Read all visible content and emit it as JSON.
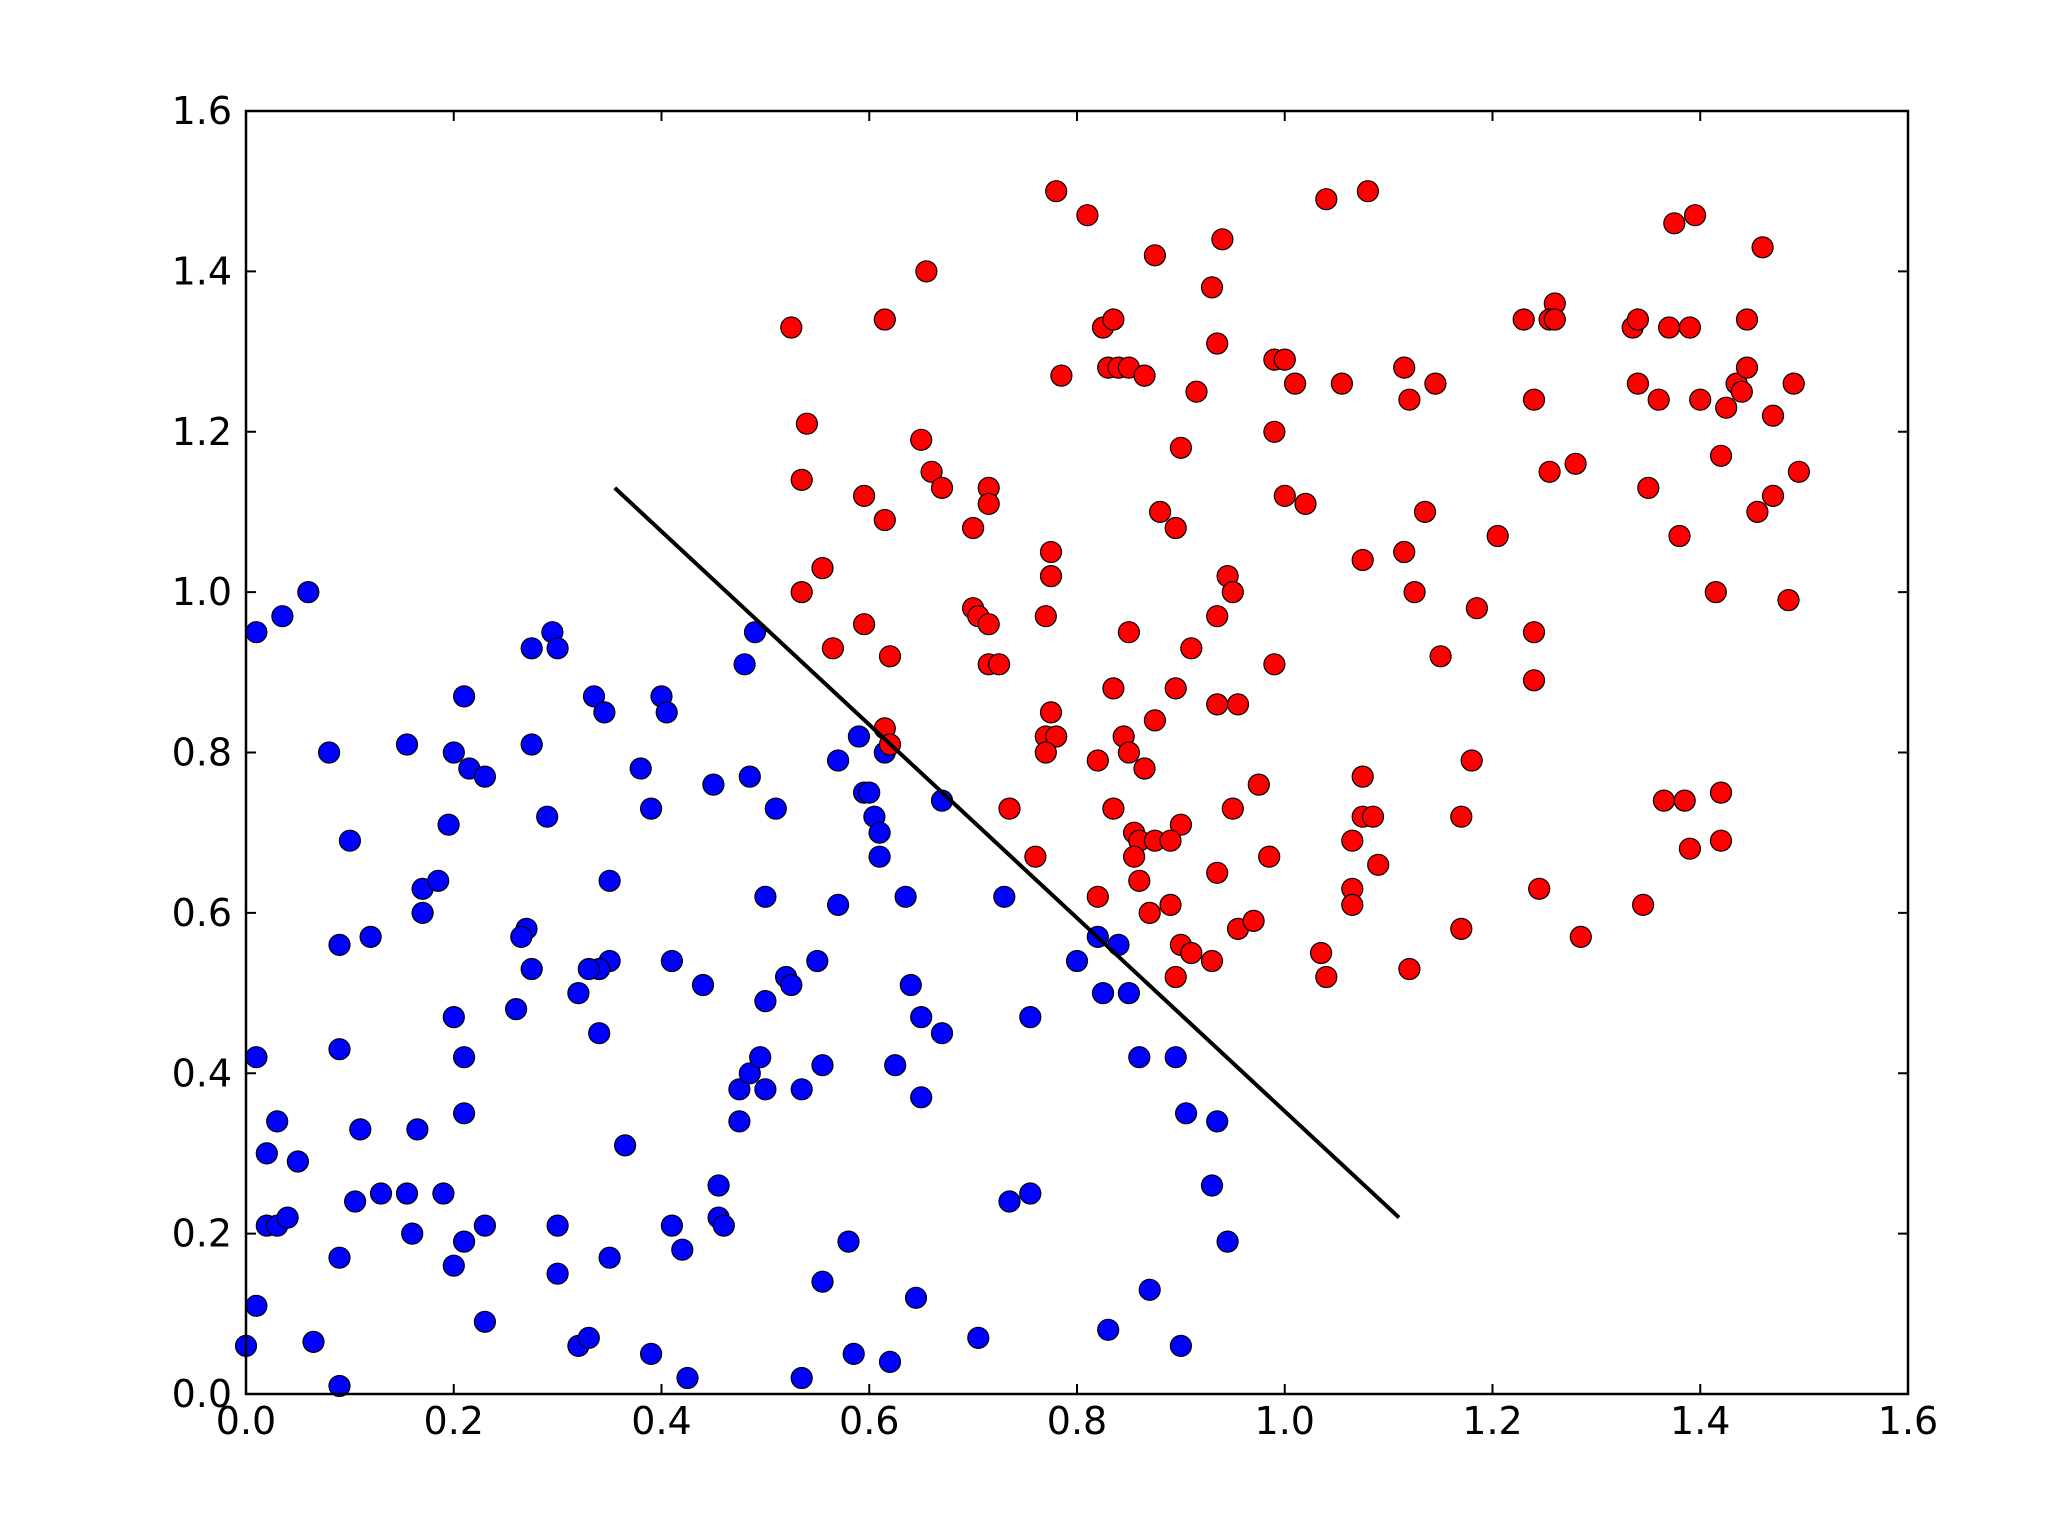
{
  "chart_data": {
    "type": "scatter",
    "title": "",
    "xlabel": "",
    "ylabel": "",
    "xlim": [
      0,
      1.6
    ],
    "ylim": [
      0,
      1.6
    ],
    "x_ticks": [
      "0.0",
      "0.2",
      "0.4",
      "0.6",
      "0.8",
      "1.0",
      "1.2",
      "1.4",
      "1.6"
    ],
    "y_ticks": [
      "0.0",
      "0.2",
      "0.4",
      "0.6",
      "0.8",
      "1.0",
      "1.2",
      "1.4",
      "1.6"
    ],
    "grid": false,
    "legend": "none",
    "series": [
      {
        "color": "#0000ff",
        "points": [
          [
            0.06,
            1.0
          ],
          [
            0.035,
            0.97
          ],
          [
            0.01,
            0.95
          ],
          [
            0.08,
            0.8
          ],
          [
            0.1,
            0.69
          ],
          [
            0.09,
            0.56
          ],
          [
            0.12,
            0.57
          ],
          [
            0.155,
            0.81
          ],
          [
            0.17,
            0.63
          ],
          [
            0.185,
            0.64
          ],
          [
            0.17,
            0.6
          ],
          [
            0.195,
            0.71
          ],
          [
            0.2,
            0.8
          ],
          [
            0.21,
            0.87
          ],
          [
            0.215,
            0.78
          ],
          [
            0.23,
            0.77
          ],
          [
            0.2,
            0.47
          ],
          [
            0.21,
            0.42
          ],
          [
            0.21,
            0.35
          ],
          [
            0.09,
            0.43
          ],
          [
            0.01,
            0.42
          ],
          [
            0.03,
            0.34
          ],
          [
            0.02,
            0.3
          ],
          [
            0.05,
            0.29
          ],
          [
            0.11,
            0.33
          ],
          [
            0.165,
            0.33
          ],
          [
            0.13,
            0.25
          ],
          [
            0.155,
            0.25
          ],
          [
            0.19,
            0.25
          ],
          [
            0.105,
            0.24
          ],
          [
            0.02,
            0.21
          ],
          [
            0.03,
            0.21
          ],
          [
            0.04,
            0.22
          ],
          [
            0.09,
            0.17
          ],
          [
            0.16,
            0.2
          ],
          [
            0.21,
            0.19
          ],
          [
            0.23,
            0.21
          ],
          [
            0.2,
            0.16
          ],
          [
            0.01,
            0.11
          ],
          [
            0.0,
            0.06
          ],
          [
            0.065,
            0.065
          ],
          [
            0.09,
            0.01
          ],
          [
            0.23,
            0.09
          ],
          [
            0.275,
            0.81
          ],
          [
            0.275,
            0.93
          ],
          [
            0.295,
            0.95
          ],
          [
            0.3,
            0.93
          ],
          [
            0.29,
            0.72
          ],
          [
            0.27,
            0.58
          ],
          [
            0.265,
            0.57
          ],
          [
            0.275,
            0.53
          ],
          [
            0.26,
            0.48
          ],
          [
            0.335,
            0.87
          ],
          [
            0.345,
            0.85
          ],
          [
            0.38,
            0.78
          ],
          [
            0.39,
            0.73
          ],
          [
            0.4,
            0.87
          ],
          [
            0.405,
            0.85
          ],
          [
            0.35,
            0.64
          ],
          [
            0.35,
            0.54
          ],
          [
            0.34,
            0.53
          ],
          [
            0.33,
            0.53
          ],
          [
            0.32,
            0.5
          ],
          [
            0.34,
            0.45
          ],
          [
            0.365,
            0.31
          ],
          [
            0.41,
            0.54
          ],
          [
            0.44,
            0.51
          ],
          [
            0.45,
            0.76
          ],
          [
            0.48,
            0.91
          ],
          [
            0.49,
            0.95
          ],
          [
            0.485,
            0.77
          ],
          [
            0.51,
            0.73
          ],
          [
            0.5,
            0.62
          ],
          [
            0.3,
            0.21
          ],
          [
            0.3,
            0.15
          ],
          [
            0.35,
            0.17
          ],
          [
            0.32,
            0.06
          ],
          [
            0.33,
            0.07
          ],
          [
            0.39,
            0.05
          ],
          [
            0.41,
            0.21
          ],
          [
            0.42,
            0.18
          ],
          [
            0.425,
            0.02
          ],
          [
            0.455,
            0.26
          ],
          [
            0.455,
            0.22
          ],
          [
            0.46,
            0.21
          ],
          [
            0.475,
            0.34
          ],
          [
            0.475,
            0.38
          ],
          [
            0.485,
            0.4
          ],
          [
            0.495,
            0.42
          ],
          [
            0.5,
            0.38
          ],
          [
            0.5,
            0.49
          ],
          [
            0.52,
            0.52
          ],
          [
            0.525,
            0.51
          ],
          [
            0.55,
            0.54
          ],
          [
            0.535,
            0.38
          ],
          [
            0.555,
            0.41
          ],
          [
            0.57,
            0.61
          ],
          [
            0.57,
            0.79
          ],
          [
            0.59,
            0.82
          ],
          [
            0.595,
            0.75
          ],
          [
            0.6,
            0.75
          ],
          [
            0.605,
            0.72
          ],
          [
            0.61,
            0.7
          ],
          [
            0.61,
            0.67
          ],
          [
            0.615,
            0.8
          ],
          [
            0.635,
            0.62
          ],
          [
            0.64,
            0.51
          ],
          [
            0.65,
            0.47
          ],
          [
            0.67,
            0.45
          ],
          [
            0.625,
            0.41
          ],
          [
            0.65,
            0.37
          ],
          [
            0.67,
            0.74
          ],
          [
            0.555,
            0.14
          ],
          [
            0.58,
            0.19
          ],
          [
            0.585,
            0.05
          ],
          [
            0.535,
            0.02
          ],
          [
            0.62,
            0.04
          ],
          [
            0.645,
            0.12
          ],
          [
            0.705,
            0.07
          ],
          [
            0.73,
            0.62
          ],
          [
            0.755,
            0.47
          ],
          [
            0.735,
            0.24
          ],
          [
            0.755,
            0.25
          ],
          [
            0.8,
            0.54
          ],
          [
            0.82,
            0.57
          ],
          [
            0.825,
            0.5
          ],
          [
            0.84,
            0.56
          ],
          [
            0.85,
            0.5
          ],
          [
            0.86,
            0.42
          ],
          [
            0.895,
            0.42
          ],
          [
            0.905,
            0.35
          ],
          [
            0.935,
            0.34
          ],
          [
            0.93,
            0.26
          ],
          [
            0.945,
            0.19
          ],
          [
            0.87,
            0.13
          ],
          [
            0.83,
            0.08
          ],
          [
            0.9,
            0.06
          ]
        ]
      },
      {
        "color": "#ff0000",
        "points": [
          [
            0.525,
            1.33
          ],
          [
            0.54,
            1.21
          ],
          [
            0.535,
            1.14
          ],
          [
            0.535,
            1.0
          ],
          [
            0.555,
            1.03
          ],
          [
            0.615,
            1.34
          ],
          [
            0.655,
            1.4
          ],
          [
            0.65,
            1.19
          ],
          [
            0.66,
            1.15
          ],
          [
            0.67,
            1.13
          ],
          [
            0.595,
            1.12
          ],
          [
            0.615,
            1.09
          ],
          [
            0.595,
            0.96
          ],
          [
            0.565,
            0.93
          ],
          [
            0.615,
            0.83
          ],
          [
            0.62,
            0.81
          ],
          [
            0.62,
            0.92
          ],
          [
            0.7,
            0.98
          ],
          [
            0.705,
            0.97
          ],
          [
            0.715,
            0.96
          ],
          [
            0.715,
            0.91
          ],
          [
            0.725,
            0.91
          ],
          [
            0.715,
            1.13
          ],
          [
            0.715,
            1.11
          ],
          [
            0.7,
            1.08
          ],
          [
            0.735,
            0.73
          ],
          [
            0.76,
            0.67
          ],
          [
            0.775,
            1.05
          ],
          [
            0.775,
            1.02
          ],
          [
            0.77,
            0.97
          ],
          [
            0.775,
            0.85
          ],
          [
            0.77,
            0.82
          ],
          [
            0.78,
            0.82
          ],
          [
            0.77,
            0.8
          ],
          [
            0.78,
            1.5
          ],
          [
            0.81,
            1.47
          ],
          [
            0.785,
            1.27
          ],
          [
            0.825,
            1.33
          ],
          [
            0.835,
            1.34
          ],
          [
            0.83,
            1.28
          ],
          [
            0.84,
            1.28
          ],
          [
            0.85,
            1.28
          ],
          [
            0.865,
            1.27
          ],
          [
            0.875,
            1.42
          ],
          [
            0.88,
            1.1
          ],
          [
            0.895,
            1.08
          ],
          [
            0.9,
            1.18
          ],
          [
            0.915,
            1.25
          ],
          [
            0.93,
            1.38
          ],
          [
            0.94,
            1.44
          ],
          [
            0.935,
            1.31
          ],
          [
            0.85,
            0.95
          ],
          [
            0.835,
            0.88
          ],
          [
            0.845,
            0.82
          ],
          [
            0.85,
            0.8
          ],
          [
            0.865,
            0.78
          ],
          [
            0.82,
            0.79
          ],
          [
            0.875,
            0.84
          ],
          [
            0.895,
            0.88
          ],
          [
            0.9,
            0.71
          ],
          [
            0.835,
            0.73
          ],
          [
            0.855,
            0.7
          ],
          [
            0.86,
            0.69
          ],
          [
            0.875,
            0.69
          ],
          [
            0.89,
            0.69
          ],
          [
            0.855,
            0.67
          ],
          [
            0.86,
            0.64
          ],
          [
            0.87,
            0.6
          ],
          [
            0.89,
            0.61
          ],
          [
            0.82,
            0.62
          ],
          [
            0.9,
            0.56
          ],
          [
            0.91,
            0.55
          ],
          [
            0.895,
            0.52
          ],
          [
            0.93,
            0.54
          ],
          [
            0.91,
            0.93
          ],
          [
            0.935,
            0.97
          ],
          [
            0.945,
            1.02
          ],
          [
            0.95,
            1.0
          ],
          [
            0.935,
            0.86
          ],
          [
            0.955,
            0.86
          ],
          [
            0.95,
            0.73
          ],
          [
            0.935,
            0.65
          ],
          [
            0.955,
            0.58
          ],
          [
            0.97,
            0.59
          ],
          [
            0.975,
            0.76
          ],
          [
            0.985,
            0.67
          ],
          [
            0.99,
            1.29
          ],
          [
            1.0,
            1.29
          ],
          [
            0.99,
            1.2
          ],
          [
            1.0,
            1.12
          ],
          [
            1.01,
            1.26
          ],
          [
            1.02,
            1.11
          ],
          [
            0.99,
            0.91
          ],
          [
            1.04,
            1.49
          ],
          [
            1.08,
            1.5
          ],
          [
            1.055,
            1.26
          ],
          [
            1.075,
            1.04
          ],
          [
            1.075,
            0.77
          ],
          [
            1.065,
            0.69
          ],
          [
            1.075,
            0.72
          ],
          [
            1.085,
            0.72
          ],
          [
            1.065,
            0.63
          ],
          [
            1.065,
            0.61
          ],
          [
            1.09,
            0.66
          ],
          [
            1.035,
            0.55
          ],
          [
            1.04,
            0.52
          ],
          [
            1.115,
            1.28
          ],
          [
            1.12,
            1.24
          ],
          [
            1.145,
            1.26
          ],
          [
            1.135,
            1.1
          ],
          [
            1.115,
            1.05
          ],
          [
            1.125,
            1.0
          ],
          [
            1.15,
            0.92
          ],
          [
            1.12,
            0.53
          ],
          [
            1.17,
            0.72
          ],
          [
            1.17,
            0.58
          ],
          [
            1.18,
            0.79
          ],
          [
            1.185,
            0.98
          ],
          [
            1.205,
            1.07
          ],
          [
            1.23,
            1.34
          ],
          [
            1.24,
            1.24
          ],
          [
            1.26,
            1.36
          ],
          [
            1.255,
            1.34
          ],
          [
            1.26,
            1.34
          ],
          [
            1.255,
            1.15
          ],
          [
            1.28,
            1.16
          ],
          [
            1.24,
            0.95
          ],
          [
            1.24,
            0.89
          ],
          [
            1.245,
            0.63
          ],
          [
            1.285,
            0.57
          ],
          [
            1.335,
            1.33
          ],
          [
            1.34,
            1.34
          ],
          [
            1.37,
            1.33
          ],
          [
            1.39,
            1.33
          ],
          [
            1.375,
            1.46
          ],
          [
            1.395,
            1.47
          ],
          [
            1.34,
            1.26
          ],
          [
            1.36,
            1.24
          ],
          [
            1.35,
            1.13
          ],
          [
            1.38,
            1.07
          ],
          [
            1.4,
            1.24
          ],
          [
            1.365,
            0.74
          ],
          [
            1.385,
            0.74
          ],
          [
            1.39,
            0.68
          ],
          [
            1.345,
            0.61
          ],
          [
            1.415,
            1.0
          ],
          [
            1.42,
            1.17
          ],
          [
            1.425,
            1.23
          ],
          [
            1.435,
            1.26
          ],
          [
            1.44,
            1.25
          ],
          [
            1.445,
            1.28
          ],
          [
            1.445,
            1.34
          ],
          [
            1.46,
            1.43
          ],
          [
            1.455,
            1.1
          ],
          [
            1.47,
            1.12
          ],
          [
            1.47,
            1.22
          ],
          [
            1.49,
            1.26
          ],
          [
            1.495,
            1.15
          ],
          [
            1.485,
            0.99
          ],
          [
            1.42,
            0.75
          ],
          [
            1.42,
            0.69
          ]
        ]
      }
    ],
    "decision_line": {
      "color": "#000000",
      "x": [
        0.355,
        1.11
      ],
      "y": [
        1.13,
        0.22
      ]
    }
  }
}
